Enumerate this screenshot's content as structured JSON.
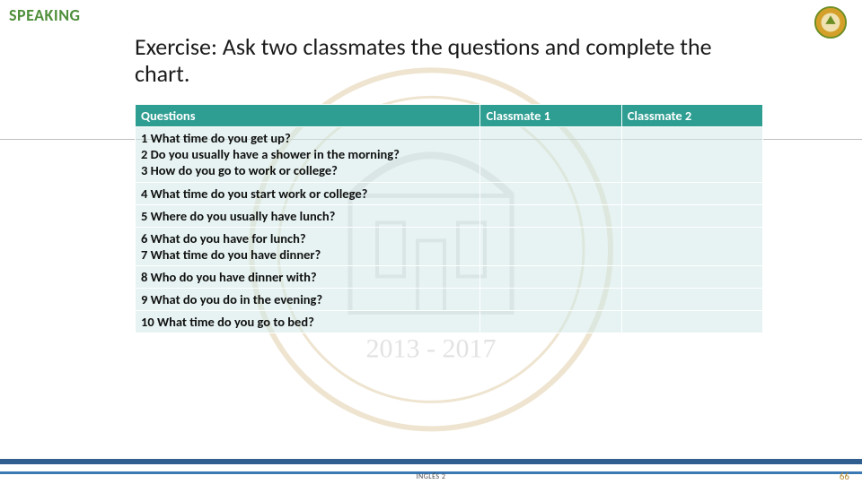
{
  "labels": {
    "speaking": "SPEAKING",
    "course": "INGLÉS 2",
    "page": "66"
  },
  "title": "Exercise: Ask two classmates the questions and complete the chart.",
  "table": {
    "columns": [
      "Questions",
      "Classmate 1",
      "Classmate 2"
    ],
    "col_widths_pct": [
      55,
      22.5,
      22.5
    ],
    "header_bg": "#2e9e92",
    "header_fg": "#ffffff",
    "body_bg": "rgba(209,234,231,0.55)",
    "border_color": "#ffffff",
    "font_weight": "700",
    "font_size_pt": 11,
    "rows": [
      [
        " Questions",
        "Classmate 1",
        "Classmate 2"
      ],
      [
        "1 What time do you get up?\n2 Do you usually have a shower in the morning?\n3 How do you go to work or college?",
        "",
        ""
      ],
      [
        "4 What time do you start work or college?",
        "",
        ""
      ],
      [
        "5 Where do you usually have lunch?",
        "",
        ""
      ],
      [
        "6 What do you have for lunch?\n7 What time do you have dinner?",
        "",
        ""
      ],
      [
        "8 Who do you have dinner with?",
        "",
        ""
      ],
      [
        "9 What do you do in the evening?",
        "",
        ""
      ],
      [
        "10 What time do you go to bed?",
        "",
        ""
      ]
    ]
  },
  "style": {
    "background_color": "#ffffff",
    "speaking_color": "#4f8f3c",
    "title_fontsize_pt": 20,
    "watermark_opacity": 0.22,
    "footer_band_color": "#2f5e8f",
    "footer_band2_color": "#3a79b3",
    "page_num_color": "#b58a2e",
    "logo_main": "#d4a02a",
    "logo_accent": "#6b8e23",
    "watermark_seal": "#b58a2e",
    "watermark_arch": "#808080",
    "watermark_years": "2013 - 2017"
  }
}
